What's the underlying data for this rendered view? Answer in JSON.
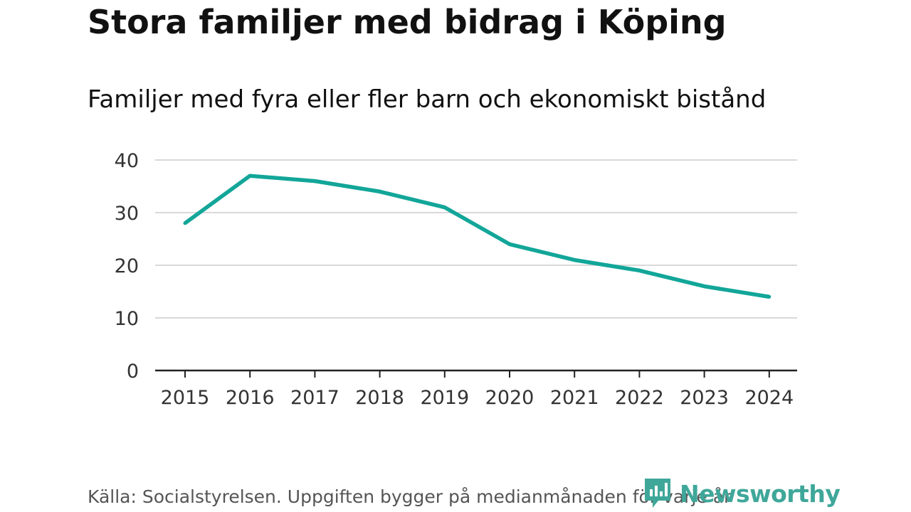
{
  "header": {
    "title": "Stora familjer med bidrag i Köping",
    "subtitle": "Familjer med fyra eller fler barn och ekonomiskt bistånd"
  },
  "footer": {
    "source": "Källa: Socialstyrelsen. Uppgiften bygger på medianmånaden för varje år",
    "brand": "Newsworthy",
    "brand_icon": "newsworthy-logo-icon"
  },
  "colors": {
    "line": "#12a699",
    "grid": "#d9d9d9",
    "axis": "#222222",
    "brand": "#3fa79a"
  },
  "chart_data": {
    "type": "line",
    "title": "Familjer med fyra eller fler barn och ekonomiskt bistånd",
    "xlabel": "",
    "ylabel": "",
    "x": [
      "2015",
      "2016",
      "2017",
      "2018",
      "2019",
      "2020",
      "2021",
      "2022",
      "2023",
      "2024"
    ],
    "series": [
      {
        "name": "Familjer",
        "values": [
          28,
          37,
          36,
          34,
          31,
          24,
          21,
          19,
          16,
          14
        ]
      }
    ],
    "ylim": [
      0,
      40
    ],
    "yticks": [
      0,
      10,
      20,
      30,
      40
    ],
    "grid": true,
    "legend": "none"
  }
}
